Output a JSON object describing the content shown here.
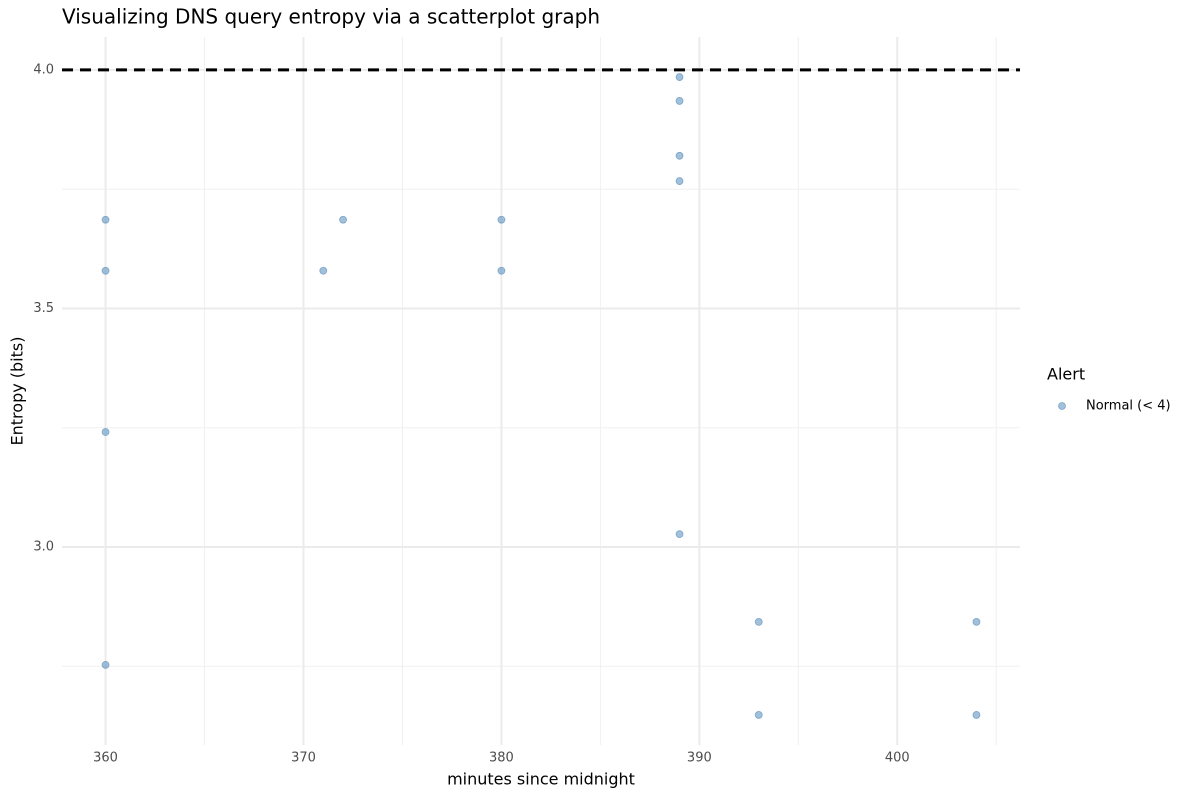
{
  "chart_data": {
    "type": "scatter",
    "title": "Visualizing DNS query entropy via a scatterplot graph",
    "x_label": "minutes since midnight",
    "y_label": "Entropy (bits)",
    "legend_title": "Alert",
    "legend": "right",
    "grid": true,
    "xlim": [
      357.8,
      406.2
    ],
    "ylim": [
      2.585,
      4.069
    ],
    "xticks": [
      360,
      370,
      380,
      390,
      400
    ],
    "yticks": [
      {
        "value": 3,
        "label": "3.0"
      },
      3.5,
      {
        "value": 4,
        "label": "4.0"
      }
    ],
    "hline": 4,
    "series": [
      {
        "name": "Normal (< 4)",
        "color": "#4682b4",
        "x": [
          360,
          360,
          360,
          360,
          371,
          372,
          380,
          380,
          389,
          389,
          389,
          389,
          389,
          393,
          393,
          404,
          404
        ],
        "values": [
          3.686,
          3.579,
          3.241,
          2.753,
          3.579,
          3.686,
          3.686,
          3.579,
          3.985,
          3.935,
          3.82,
          3.767,
          3.027,
          2.843,
          2.648,
          2.843,
          2.648
        ]
      }
    ]
  }
}
